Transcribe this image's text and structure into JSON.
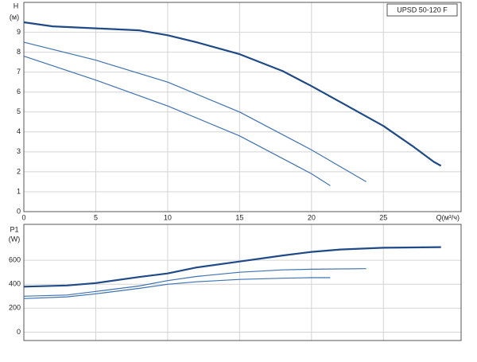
{
  "chart_data": [
    {
      "type": "line",
      "title": "UPSD 50-120 F",
      "y_label": "H",
      "y_unit": "(м)",
      "x_label": "Q(м³/ч)",
      "xlim": [
        0,
        30.4
      ],
      "ylim": [
        0,
        10.5
      ],
      "xticks": [
        0,
        5,
        10,
        15,
        20,
        25
      ],
      "yticks": [
        0,
        1,
        2,
        3,
        4,
        5,
        6,
        7,
        8,
        9
      ],
      "grid": true,
      "series": [
        {
          "color": "#1f4a85",
          "width": 2.2,
          "x": [
            0,
            2,
            5,
            8,
            10,
            12,
            15,
            18,
            20,
            22,
            25,
            27,
            28.5,
            29
          ],
          "values": [
            9.5,
            9.3,
            9.2,
            9.1,
            8.85,
            8.5,
            7.9,
            7.05,
            6.3,
            5.5,
            4.3,
            3.3,
            2.5,
            2.3
          ]
        },
        {
          "color": "#3f72b0",
          "width": 1.2,
          "x": [
            0,
            5,
            10,
            15,
            20,
            23.8
          ],
          "values": [
            8.5,
            7.6,
            6.5,
            5.0,
            3.1,
            1.5
          ]
        },
        {
          "color": "#3f72b0",
          "width": 1.2,
          "x": [
            0,
            5,
            10,
            15,
            20,
            21.3
          ],
          "values": [
            7.8,
            6.6,
            5.3,
            3.8,
            1.9,
            1.3
          ]
        }
      ]
    },
    {
      "type": "line",
      "y_label": "P1",
      "y_unit": "(W)",
      "xlim": [
        0,
        30.4
      ],
      "ylim": [
        -70,
        900
      ],
      "yticks": [
        0,
        200,
        400,
        600
      ],
      "grid": true,
      "series": [
        {
          "color": "#1f4a85",
          "width": 2.2,
          "x": [
            0,
            3,
            5,
            8,
            10,
            12,
            15,
            18,
            20,
            22,
            25,
            29
          ],
          "values": [
            380,
            390,
            410,
            460,
            490,
            540,
            590,
            640,
            670,
            690,
            705,
            710
          ]
        },
        {
          "color": "#3f72b0",
          "width": 1.2,
          "x": [
            0,
            3,
            5,
            8,
            10,
            12,
            15,
            18,
            20,
            23.8
          ],
          "values": [
            300,
            310,
            340,
            385,
            430,
            465,
            500,
            520,
            525,
            530
          ]
        },
        {
          "color": "#3f72b0",
          "width": 1.2,
          "x": [
            0,
            3,
            5,
            8,
            10,
            12,
            15,
            18,
            20,
            21.3
          ],
          "values": [
            280,
            295,
            320,
            365,
            400,
            420,
            440,
            450,
            455,
            455
          ]
        }
      ]
    }
  ]
}
